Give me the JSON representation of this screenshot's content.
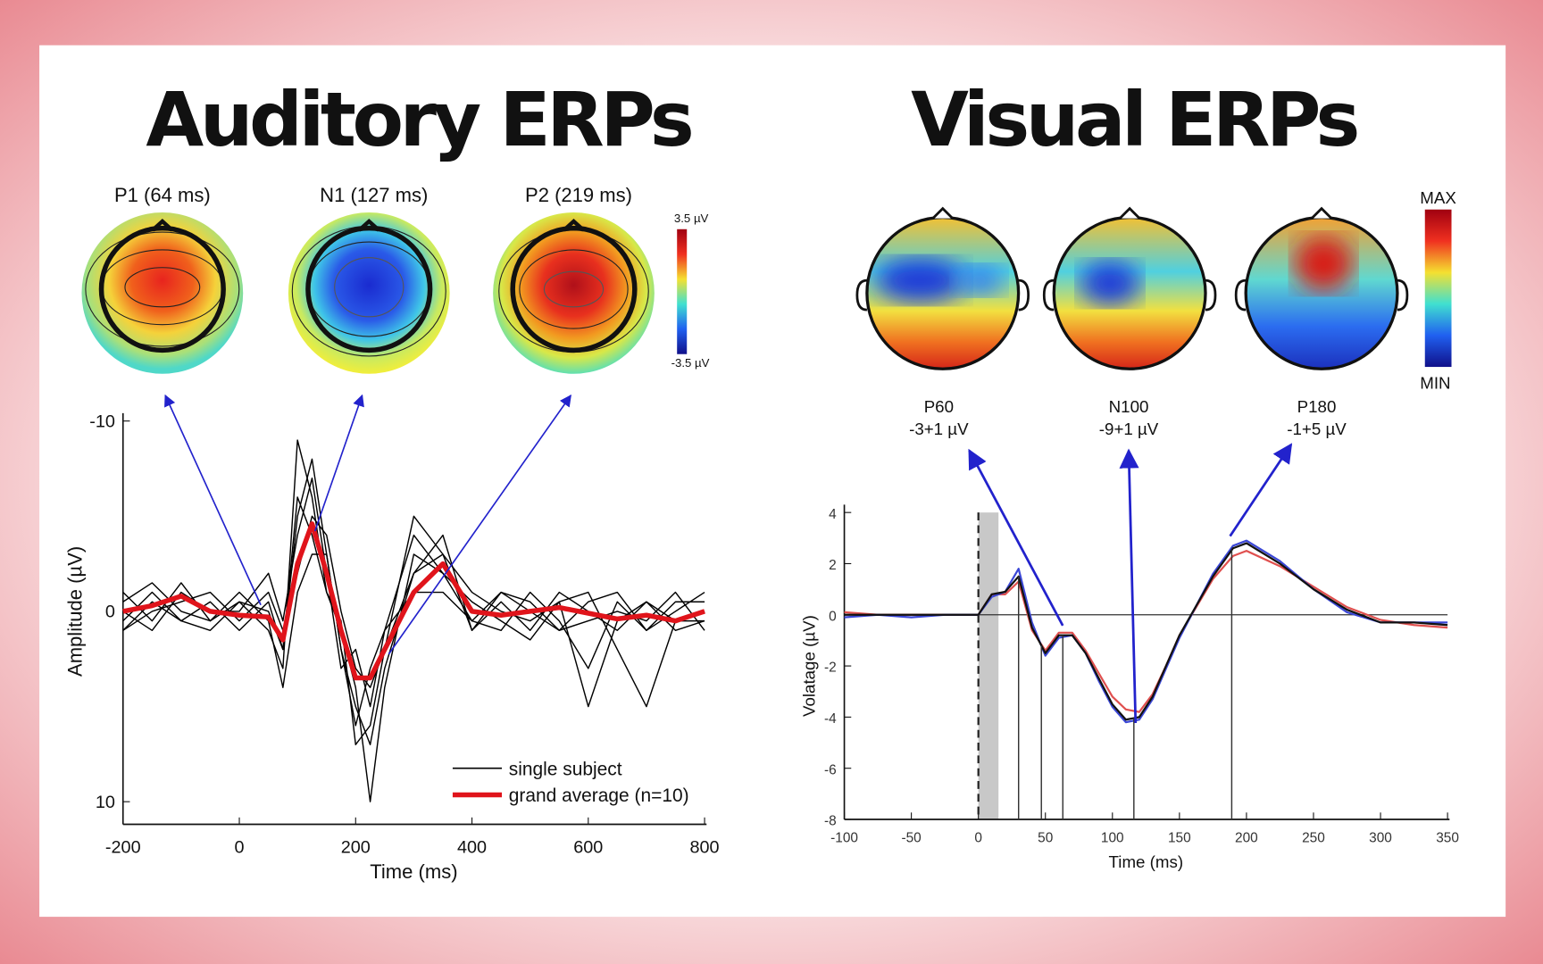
{
  "chart_data": [
    {
      "type": "line",
      "title": "Auditory ERPs",
      "xlabel": "Time (ms)",
      "ylabel": "Amplitude (µV)",
      "topomaps": [
        "P1 (64 ms)",
        "N1 (127 ms)",
        "P2 (219 ms)"
      ],
      "colorbar": [
        "3.5 µV",
        "-3.5 µV"
      ],
      "x": [
        -200,
        -150,
        -100,
        -50,
        0,
        50,
        75,
        100,
        125,
        150,
        175,
        200,
        225,
        250,
        300,
        350,
        400,
        450,
        500,
        550,
        600,
        650,
        700,
        750,
        800
      ],
      "xlim": [
        -200,
        800
      ],
      "xticks": [
        -200,
        0,
        200,
        400,
        600,
        800
      ],
      "ylim": [
        -10,
        10
      ],
      "yticks": [
        -10,
        0,
        10
      ],
      "y_inverted": true,
      "legend": "lower right",
      "series": [
        {
          "name": "single subject",
          "color": "#000000",
          "values": [
            [
              0.5,
              -1,
              0.5,
              -0.5,
              1,
              -0.5,
              2,
              -5,
              -8,
              -3,
              2,
              5,
              7,
              3,
              -2,
              -4,
              1,
              -0.5,
              1,
              -1,
              0,
              1,
              -0.5,
              1,
              0.5
            ],
            [
              -1,
              0.5,
              -1.5,
              0.5,
              -0.5,
              1,
              3,
              -9,
              -6,
              -1,
              1,
              4,
              10,
              4,
              -3,
              -2,
              0.5,
              1,
              -1,
              0.5,
              3,
              -0.5,
              1,
              0,
              -1
            ],
            [
              1,
              0,
              -0.5,
              -1,
              0.5,
              -1,
              1,
              -2,
              -5,
              -4,
              0,
              3,
              4,
              2,
              -5,
              -3,
              -1,
              0,
              0.5,
              -0.5,
              -1,
              2,
              5,
              0.5,
              0.5
            ],
            [
              -0.5,
              -1.5,
              0,
              0.5,
              -1,
              0.5,
              4,
              -1,
              -3,
              -3,
              2,
              6,
              3,
              1,
              -1,
              -1,
              0.5,
              -1,
              0,
              1,
              0.5,
              0,
              0.5,
              -1,
              1
            ],
            [
              0,
              1,
              -1,
              0,
              0,
              -2,
              0.5,
              -4,
              -7,
              -2,
              3,
              2,
              5,
              1,
              -4,
              -2,
              -0.5,
              0.5,
              1.5,
              -0.5,
              5,
              0.5,
              -0.5,
              0.5,
              0
            ],
            [
              1,
              -0.5,
              0.5,
              1,
              -0.5,
              0,
              2,
              -6,
              -4,
              -1,
              0.5,
              7,
              6,
              2,
              -2,
              -3,
              1,
              -1,
              -0.5,
              1,
              -0.5,
              -1,
              1,
              -0.5,
              -0.5
            ]
          ]
        },
        {
          "name": "grand average (n=10)",
          "color": "#e0141b",
          "values": [
            0,
            -0.3,
            -0.8,
            0,
            0.2,
            0.3,
            1.5,
            -2.5,
            -4.6,
            -2,
            1,
            3.5,
            3.5,
            2,
            -1,
            -2.5,
            0,
            0.2,
            0,
            -0.2,
            0.1,
            0.4,
            0.2,
            0.5,
            0
          ]
        }
      ]
    },
    {
      "type": "line",
      "title": "Visual ERPs",
      "xlabel": "Time (ms)",
      "ylabel": "Volatage (µV)",
      "colorbar": [
        "MAX",
        "MIN"
      ],
      "annotations": [
        {
          "label": "P60",
          "text": "-3+1 µV"
        },
        {
          "label": "N100",
          "text": "-9+1 µV"
        },
        {
          "label": "P180",
          "text": "-1+5 µV"
        }
      ],
      "x": [
        -100,
        -75,
        -50,
        -25,
        0,
        10,
        20,
        30,
        40,
        50,
        60,
        70,
        80,
        90,
        100,
        110,
        120,
        130,
        140,
        150,
        175,
        190,
        200,
        225,
        250,
        275,
        300,
        325,
        350
      ],
      "xlim": [
        -100,
        350
      ],
      "xticks": [
        -100,
        -50,
        0,
        50,
        100,
        150,
        200,
        250,
        300,
        350
      ],
      "ylim": [
        -8,
        4
      ],
      "yticks": [
        -8,
        -6,
        -4,
        -2,
        0,
        2,
        4
      ],
      "zero_line": true,
      "stimulus_onset": 0,
      "shaded": [
        0,
        15
      ],
      "markers": [
        30,
        47,
        63,
        116,
        189
      ],
      "series": [
        {
          "color": "#e0504f",
          "values": [
            0.1,
            0,
            0,
            0,
            0,
            0.8,
            0.8,
            1.3,
            -0.6,
            -1.4,
            -0.7,
            -0.7,
            -1.4,
            -2.3,
            -3.2,
            -3.7,
            -3.8,
            -3.1,
            -2,
            -0.8,
            1.4,
            2.3,
            2.5,
            1.9,
            1.1,
            0.3,
            -0.2,
            -0.4,
            -0.5
          ]
        },
        {
          "color": "#3b47d6",
          "values": [
            -0.1,
            0,
            -0.1,
            0,
            0,
            0.7,
            0.9,
            1.8,
            -0.3,
            -1.6,
            -0.9,
            -0.8,
            -1.5,
            -2.6,
            -3.6,
            -4.2,
            -4.1,
            -3.3,
            -2.1,
            -0.9,
            1.6,
            2.7,
            2.9,
            2.1,
            1,
            0.1,
            -0.3,
            -0.3,
            -0.3
          ]
        },
        {
          "color": "#111111",
          "values": [
            0,
            0,
            0,
            0,
            0,
            0.8,
            0.9,
            1.5,
            -0.5,
            -1.5,
            -0.8,
            -0.8,
            -1.5,
            -2.5,
            -3.5,
            -4.1,
            -4,
            -3.2,
            -2,
            -0.8,
            1.5,
            2.6,
            2.8,
            2,
            1,
            0.2,
            -0.3,
            -0.3,
            -0.4
          ]
        }
      ]
    }
  ]
}
